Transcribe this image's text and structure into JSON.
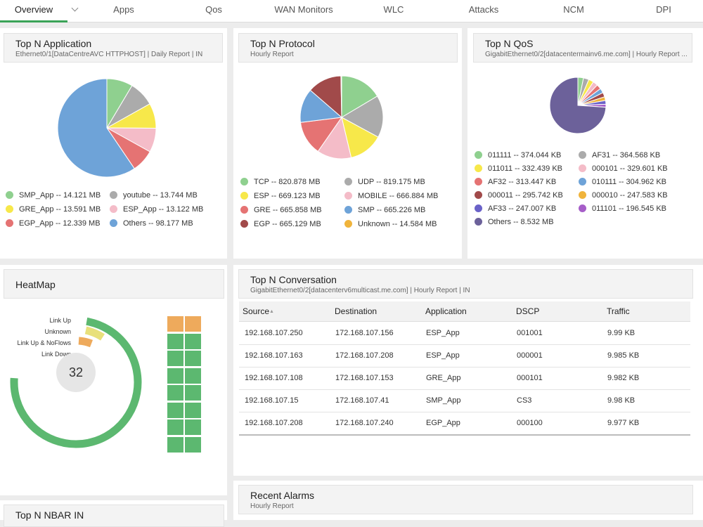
{
  "nav": {
    "tabs": [
      "Overview",
      "Apps",
      "Qos",
      "WAN Monitors",
      "WLC",
      "Attacks",
      "NCM",
      "DPI"
    ],
    "active_tab": "Overview"
  },
  "top_app": {
    "title": "Top N Application",
    "subtitle": "Ethernet0/1[DataCentreAVC HTTPHOST] | Daily Report | IN",
    "legend": [
      "SMP_App -- 14.121 MB",
      "youtube -- 13.744 MB",
      "GRE_App -- 13.591 MB",
      "ESP_App -- 13.122 MB",
      "EGP_App -- 12.339 MB",
      "Others -- 98.177 MB"
    ],
    "colors": [
      "#8fd08f",
      "#ababab",
      "#f7e84a",
      "#f4bcc8",
      "#e57373",
      "#6ea3d8"
    ],
    "values": [
      14.121,
      13.744,
      13.591,
      13.122,
      12.339,
      98.177
    ]
  },
  "top_protocol": {
    "title": "Top N Protocol",
    "subtitle": "Hourly Report",
    "legend": [
      "TCP -- 820.878 MB",
      "UDP -- 819.175 MB",
      "ESP -- 669.123 MB",
      "MOBILE -- 666.884 MB",
      "GRE -- 665.858 MB",
      "SMP -- 665.226 MB",
      "EGP -- 665.129 MB",
      "Unknown -- 14.584 MB"
    ],
    "colors": [
      "#8fd08f",
      "#ababab",
      "#f7e84a",
      "#f4bcc8",
      "#e57373",
      "#6ea3d8",
      "#a14a4a",
      "#f0b43c"
    ],
    "values": [
      820.878,
      819.175,
      669.123,
      666.884,
      665.858,
      665.226,
      665.129,
      14.584
    ]
  },
  "top_qos": {
    "title": "Top N QoS",
    "subtitle": "GigabitEthernet0/2[datacentermainv6.me.com] | Hourly Report ...",
    "legend": [
      "011111 -- 374.044 KB",
      "AF31 -- 364.568 KB",
      "011011 -- 332.439 KB",
      "000101 -- 329.601 KB",
      "AF32 -- 313.447 KB",
      "010111 -- 304.962 KB",
      "000011 -- 295.742 KB",
      "000010 -- 247.583 KB",
      "AF33 -- 247.007 KB",
      "011101 -- 196.545 KB",
      "Others -- 8.532 MB"
    ],
    "colors": [
      "#8fd08f",
      "#ababab",
      "#f7e84a",
      "#f4bcc8",
      "#e57373",
      "#6ea3d8",
      "#a14a4a",
      "#f0b43c",
      "#6a62c8",
      "#a65ec8",
      "#6c619a"
    ],
    "values": [
      374.044,
      364.568,
      332.439,
      329.601,
      313.447,
      304.962,
      295.742,
      247.583,
      247.007,
      196.545,
      8532
    ]
  },
  "heatmap": {
    "title": "HeatMap",
    "center_value": "32",
    "labels": [
      "Link Up",
      "Unknown",
      "Link Up & NoFlows",
      "Link Down"
    ],
    "colors": {
      "link_up": "#5cb870",
      "unknown": "#e8e07a",
      "noflows": "#eeaa5c"
    }
  },
  "conversation": {
    "title": "Top N Conversation",
    "subtitle": "GigabitEthernet0/2[datacenterv6multicast.me.com] | Hourly Report | IN",
    "columns": [
      "Source",
      "Destination",
      "Application",
      "DSCP",
      "Traffic"
    ],
    "rows": [
      [
        "192.168.107.250",
        "172.168.107.156",
        "ESP_App",
        "001001",
        "9.99 KB"
      ],
      [
        "192.168.107.163",
        "172.168.107.208",
        "ESP_App",
        "000001",
        "9.985 KB"
      ],
      [
        "192.168.107.108",
        "172.168.107.153",
        "GRE_App",
        "000101",
        "9.982 KB"
      ],
      [
        "192.168.107.15",
        "172.168.107.41",
        "SMP_App",
        "CS3",
        "9.98 KB"
      ],
      [
        "192.168.107.208",
        "172.168.107.240",
        "EGP_App",
        "000100",
        "9.977 KB"
      ]
    ]
  },
  "alarms": {
    "title": "Recent Alarms",
    "subtitle": "Hourly Report"
  },
  "nbar": {
    "title": "Top N NBAR IN"
  }
}
